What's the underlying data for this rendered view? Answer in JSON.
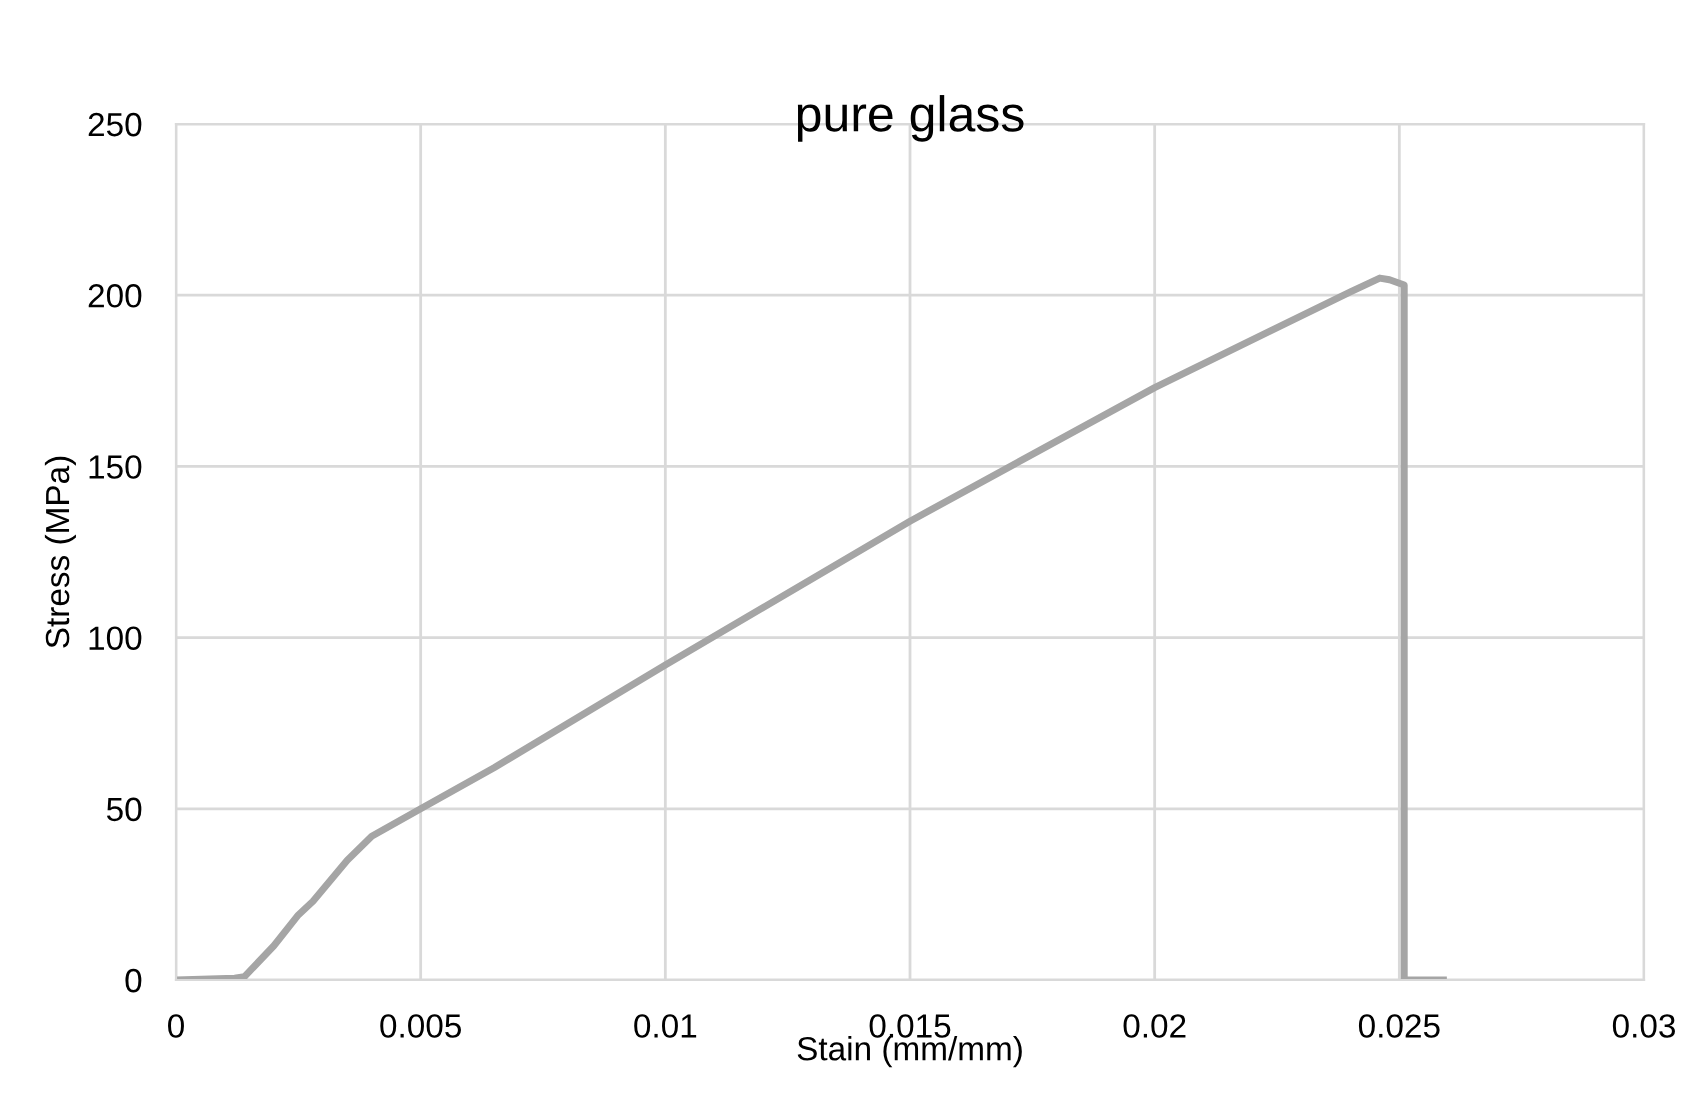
{
  "chart_data": {
    "type": "line",
    "title": "pure glass",
    "xlabel": "Stain (mm/mm)",
    "ylabel": "Stress (MPa)",
    "series": [
      {
        "color": "#a5a5a5",
        "x": [
          0,
          0.0012,
          0.0014,
          0.002,
          0.0025,
          0.0028,
          0.0035,
          0.004,
          0.005,
          0.0065,
          0.01,
          0.015,
          0.02,
          0.024,
          0.0246,
          0.0248,
          0.0251,
          0.0251,
          0.0251,
          0.0259
        ],
        "values": [
          0,
          0.5,
          1,
          10,
          19,
          23,
          35,
          42,
          50,
          62,
          92,
          134,
          173,
          201,
          205,
          204.5,
          203,
          100,
          0,
          0
        ]
      }
    ],
    "xlim": [
      0,
      0.03
    ],
    "xticks": [
      0,
      0.005,
      0.01,
      0.015,
      0.02,
      0.025,
      0.03
    ],
    "ylim": [
      0,
      250
    ],
    "yticks": [
      0,
      50,
      100,
      150,
      200,
      250
    ],
    "grid": true,
    "marker": "none",
    "line_style": "solid"
  }
}
